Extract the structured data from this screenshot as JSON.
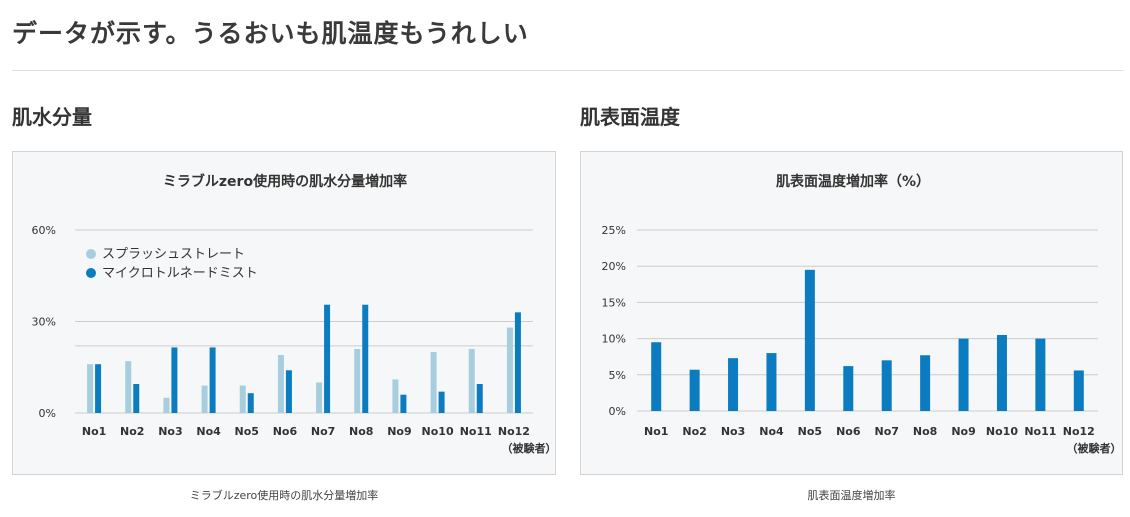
{
  "page": {
    "title": "データが示す。うるおいも肌温度もうれしい"
  },
  "sections": [
    {
      "heading": "肌水分量",
      "caption": "ミラブルzero使用時の肌水分量増加率"
    },
    {
      "heading": "肌表面温度",
      "caption": "肌表面温度増加率"
    }
  ],
  "colors": {
    "light": "#a6cede",
    "dark": "#0b7cc0",
    "grid": "#cccccc",
    "card_bg": "#f6f7f8"
  },
  "chart_data": [
    {
      "type": "bar",
      "title": "ミラブルzero使用時の肌水分量増加率",
      "categories": [
        "No1",
        "No2",
        "No3",
        "No4",
        "No5",
        "No6",
        "No7",
        "No8",
        "No9",
        "No10",
        "No11",
        "No12"
      ],
      "x_suffix_label": "（被験者）",
      "series": [
        {
          "name": "スプラッシュストレート",
          "color": "#a6cede",
          "values": [
            16,
            17,
            5,
            9,
            9,
            19,
            10,
            21,
            11,
            20,
            21,
            28
          ]
        },
        {
          "name": "マイクロトルネードミスト",
          "color": "#0b7cc0",
          "values": [
            16,
            9.5,
            21.5,
            21.5,
            6.5,
            14,
            35.5,
            35.5,
            6,
            7,
            9.5,
            33
          ]
        }
      ],
      "yticks": [
        0,
        30,
        60
      ],
      "ytick_labels": [
        "0%",
        "30%",
        "60%"
      ],
      "ylim": [
        0,
        60
      ],
      "grid": true,
      "legend_position": "top-left"
    },
    {
      "type": "bar",
      "title": "肌表面温度増加率（%）",
      "categories": [
        "No1",
        "No2",
        "No3",
        "No4",
        "No5",
        "No6",
        "No7",
        "No8",
        "No9",
        "No10",
        "No11",
        "No12"
      ],
      "x_suffix_label": "（被験者）",
      "series": [
        {
          "color": "#0b7cc0",
          "values": [
            9.5,
            5.7,
            7.3,
            8,
            19.5,
            6.2,
            7,
            7.7,
            10,
            10.5,
            10,
            5.6
          ]
        }
      ],
      "yticks": [
        0,
        5,
        10,
        15,
        20,
        25
      ],
      "ytick_labels": [
        "0%",
        "5%",
        "10%",
        "15%",
        "20%",
        "25%"
      ],
      "ylim": [
        0,
        25
      ],
      "grid": true
    }
  ]
}
